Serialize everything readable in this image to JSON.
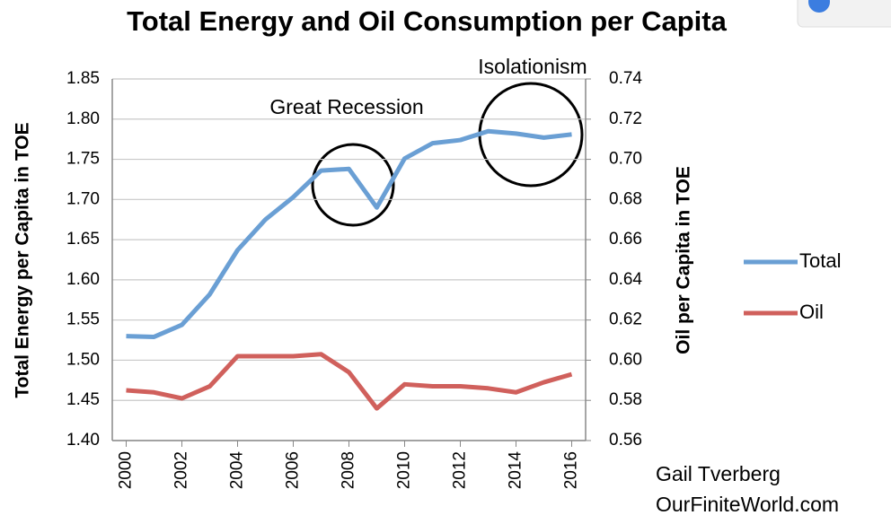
{
  "chart_data": {
    "type": "line",
    "title": "Total Energy and Oil Consumption per Capita",
    "ylabel": "Total Energy per Capita  in TOE",
    "y2label": "Oil per Capita in TOE",
    "annotations": [
      "Great Recession",
      "Isolationism"
    ],
    "credit": [
      "Gail Tverberg",
      "OurFiniteWorld.com"
    ],
    "x": [
      2000,
      2001,
      2002,
      2003,
      2004,
      2005,
      2006,
      2007,
      2008,
      2009,
      2010,
      2011,
      2012,
      2013,
      2014,
      2015,
      2016
    ],
    "xlim": [
      1999.5,
      2016.5
    ],
    "xticks": [
      2000,
      2002,
      2004,
      2006,
      2008,
      2010,
      2012,
      2014,
      2016
    ],
    "ylim": [
      1.4,
      1.85
    ],
    "yticks": [
      {
        "value": 1.4,
        "label": "1.40"
      },
      1.45,
      {
        "value": 1.5,
        "label": "1.50"
      },
      1.55,
      {
        "value": 1.6,
        "label": "1.60"
      },
      1.65,
      {
        "value": 1.7,
        "label": "1.70"
      },
      1.75,
      {
        "value": 1.8,
        "label": "1.80"
      },
      1.85
    ],
    "y2lim": [
      0.56,
      0.74
    ],
    "y2ticks": [
      0.56,
      0.58,
      {
        "value": 0.6,
        "label": "0.60"
      },
      0.62,
      0.64,
      0.66,
      0.68,
      {
        "value": 0.7,
        "label": "0.70"
      },
      0.72,
      0.74
    ],
    "grid": true,
    "legend": "right",
    "series": [
      {
        "name": "Total",
        "color": "#6a9fd4",
        "values": [
          1.53,
          1.529,
          1.544,
          1.582,
          1.637,
          1.675,
          1.703,
          1.736,
          1.738,
          1.69,
          1.751,
          1.77,
          1.774,
          1.785,
          1.782,
          1.777,
          1.781
        ]
      },
      {
        "name": "Oil",
        "color": "#d0605c",
        "axis": "y2",
        "values": [
          0.585,
          0.584,
          0.581,
          0.587,
          0.602,
          0.602,
          0.602,
          0.603,
          0.594,
          0.576,
          0.588,
          0.587,
          0.587,
          0.586,
          0.584,
          0.589,
          0.593
        ]
      }
    ]
  }
}
